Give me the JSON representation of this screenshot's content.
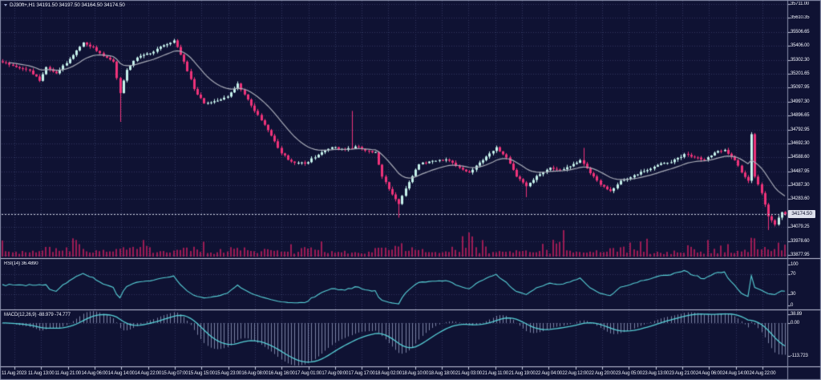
{
  "header": {
    "symbol": "DJ30ft+",
    "timeframe": "H1",
    "title": "DJ30ft+,H1  34191.50 34197.50 34164.50 34174.50"
  },
  "colors": {
    "background": "#0f1233",
    "grid": "#31375f",
    "bull_candle": "#c6f2ec",
    "bear_candle": "#ef337a",
    "volume": "#9c1c55",
    "moving_average": "#a9acb8",
    "indicator_line": "#58d1d8",
    "macd_histogram": "#97a0c2",
    "separator": "#c4c8dd",
    "border": "#8b91ad",
    "price_line": "#d2d6e6",
    "price_tag_bg": "#dde0ec",
    "price_tag_text": "#0d102c",
    "axis_text": "#eef0f8"
  },
  "main_panel": {
    "current_price": "34174.50",
    "price_labels": [
      "35711.00",
      "35610.35",
      "35506.65",
      "35406.00",
      "35302.30",
      "35201.65",
      "35097.95",
      "34997.30",
      "34896.65",
      "34792.95",
      "34692.30",
      "34588.60",
      "34487.95",
      "34387.30",
      "34283.60",
      "",
      "34079.25",
      "33978.60",
      "33877.95"
    ]
  },
  "rsi_panel": {
    "label": "RSI(14) 36.4890",
    "scale": [
      {
        "v": 100,
        "t": "100"
      },
      {
        "v": 70,
        "t": "70"
      },
      {
        "v": 30,
        "t": "30"
      },
      {
        "v": 0,
        "t": "0"
      }
    ],
    "levels": [
      70,
      30
    ]
  },
  "macd_panel": {
    "label": "MACD(12,26,9) -88.979 -74.777",
    "scale": [
      {
        "v": 38.89,
        "t": "38.89"
      },
      {
        "v": 0,
        "t": "0.00"
      },
      {
        "v": -113.723,
        "t": "-113.723"
      }
    ]
  },
  "time_axis": {
    "labels": [
      "11 Aug 2023",
      "11 Aug 13:00",
      "11 Aug 21:00",
      "14 Aug 06:00",
      "14 Aug 14:00",
      "14 Aug 22:00",
      "15 Aug 07:00",
      "15 Aug 15:00",
      "15 Aug 23:00",
      "16 Aug 08:00",
      "16 Aug 16:00",
      "17 Aug 01:00",
      "17 Aug 09:00",
      "17 Aug 17:00",
      "18 Aug 02:00",
      "18 Aug 10:00",
      "18 Aug 18:00",
      "21 Aug 03:00",
      "21 Aug 11:00",
      "21 Aug 19:00",
      "22 Aug 04:00",
      "22 Aug 12:00",
      "22 Aug 20:00",
      "23 Aug 05:00",
      "23 Aug 13:00",
      "23 Aug 21:00",
      "24 Aug 06:00",
      "24 Aug 14:00",
      "24 Aug 22:00"
    ]
  },
  "chart_data": {
    "type": "candlestick",
    "symbol": "DJ30ft+",
    "timeframe": "H1",
    "bar_count": 234,
    "price_axis": {
      "top": 35711.0,
      "bottom": 33877.95
    },
    "close_anchors": [
      [
        0,
        35285
      ],
      [
        4,
        35250
      ],
      [
        8,
        35225
      ],
      [
        11,
        35150
      ],
      [
        13,
        35250
      ],
      [
        16,
        35205
      ],
      [
        20,
        35310
      ],
      [
        24,
        35430
      ],
      [
        27,
        35395
      ],
      [
        30,
        35330
      ],
      [
        33,
        35290
      ],
      [
        35,
        35060
      ],
      [
        37,
        35230
      ],
      [
        40,
        35320
      ],
      [
        44,
        35350
      ],
      [
        48,
        35410
      ],
      [
        51,
        35445
      ],
      [
        54,
        35290
      ],
      [
        57,
        35090
      ],
      [
        60,
        34985
      ],
      [
        64,
        35005
      ],
      [
        67,
        35035
      ],
      [
        70,
        35130
      ],
      [
        72,
        35050
      ],
      [
        75,
        34930
      ],
      [
        79,
        34790
      ],
      [
        83,
        34620
      ],
      [
        86,
        34560
      ],
      [
        90,
        34545
      ],
      [
        94,
        34610
      ],
      [
        98,
        34665
      ],
      [
        102,
        34645
      ],
      [
        105,
        34670
      ],
      [
        108,
        34640
      ],
      [
        111,
        34630
      ],
      [
        113,
        34450
      ],
      [
        116,
        34320
      ],
      [
        118,
        34250
      ],
      [
        121,
        34410
      ],
      [
        124,
        34540
      ],
      [
        128,
        34565
      ],
      [
        132,
        34575
      ],
      [
        136,
        34515
      ],
      [
        139,
        34480
      ],
      [
        143,
        34570
      ],
      [
        147,
        34665
      ],
      [
        150,
        34590
      ],
      [
        153,
        34450
      ],
      [
        156,
        34380
      ],
      [
        159,
        34455
      ],
      [
        163,
        34515
      ],
      [
        166,
        34500
      ],
      [
        169,
        34525
      ],
      [
        172,
        34570
      ],
      [
        175,
        34475
      ],
      [
        178,
        34390
      ],
      [
        181,
        34345
      ],
      [
        184,
        34420
      ],
      [
        187,
        34445
      ],
      [
        191,
        34490
      ],
      [
        195,
        34535
      ],
      [
        199,
        34555
      ],
      [
        203,
        34615
      ],
      [
        206,
        34590
      ],
      [
        209,
        34575
      ],
      [
        212,
        34625
      ],
      [
        215,
        34645
      ],
      [
        218,
        34570
      ],
      [
        220,
        34480
      ],
      [
        222,
        34420
      ],
      [
        223,
        34760
      ],
      [
        224,
        34450
      ],
      [
        226,
        34330
      ],
      [
        228,
        34160
      ],
      [
        230,
        34100
      ],
      [
        232,
        34190
      ],
      [
        233,
        34174.5
      ]
    ],
    "wick_spikes": [
      [
        35,
        "low",
        34850
      ],
      [
        104,
        "high",
        34930
      ],
      [
        118,
        "low",
        34150
      ],
      [
        156,
        "low",
        34300
      ],
      [
        173,
        "high",
        34660
      ],
      [
        223,
        "high",
        34775
      ],
      [
        228,
        "low",
        34060
      ]
    ],
    "last_bar_ohlc": [
      34191.5,
      34197.5,
      34164.5,
      34174.5
    ],
    "moving_average": {
      "type": "EMA",
      "period": 16
    },
    "indicators": {
      "rsi": {
        "period": 14,
        "last_value": 36.489,
        "levels": [
          70,
          30
        ],
        "range": [
          0,
          100
        ]
      },
      "macd": {
        "fast": 12,
        "slow": 26,
        "signal": 9,
        "last_macd": -88.979,
        "last_signal": -74.777,
        "scale_max": 38.89,
        "scale_min": -113.723
      }
    }
  }
}
